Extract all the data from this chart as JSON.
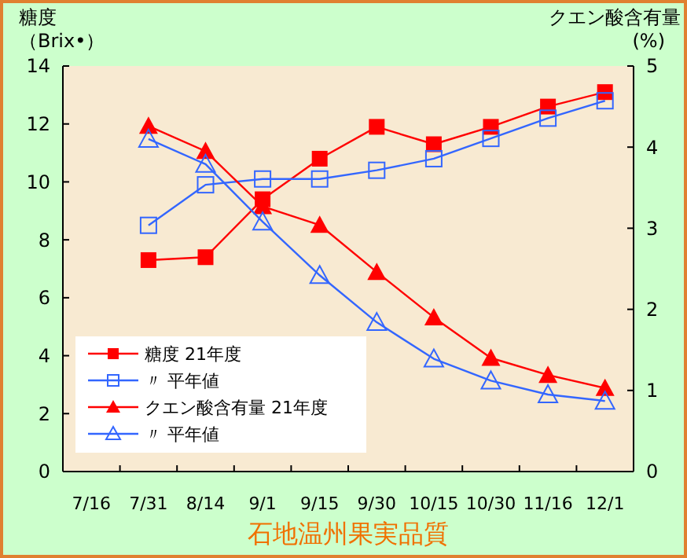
{
  "chart_data": {
    "type": "line",
    "title": "石地温州果実品質",
    "ylabel": "糖度（Brix•）",
    "y2label": "クエン酸含有量(%)",
    "categories": [
      "7/16",
      "7/31",
      "8/14",
      "9/1",
      "9/15",
      "9/30",
      "10/15",
      "10/30",
      "11/16",
      "12/1"
    ],
    "ylim": [
      0,
      14
    ],
    "yticks": [
      0,
      2,
      4,
      6,
      8,
      10,
      12,
      14
    ],
    "y2lim": [
      0,
      5
    ],
    "y2ticks": [
      0,
      1,
      2,
      3,
      4,
      5
    ],
    "grid": false,
    "legend": "bottom left",
    "line_style": "solid",
    "series": [
      {
        "name": "糖度 21年度",
        "color": "#ff0000",
        "marker": "square",
        "values": [
          null,
          7.3,
          7.4,
          9.4,
          10.8,
          11.9,
          11.3,
          11.9,
          12.6,
          13.1
        ]
      },
      {
        "name": "〃 平年値",
        "color": "#3366ff",
        "marker": "square",
        "values": [
          null,
          8.5,
          9.9,
          10.1,
          10.1,
          10.4,
          10.8,
          11.5,
          12.2,
          12.8
        ]
      },
      {
        "name": "クエン酸含有量 21年度",
        "color": "#ff0000",
        "marker": "triangle",
        "axis": "y2",
        "values": [
          null,
          4.26,
          3.95,
          3.27,
          3.04,
          2.46,
          1.9,
          1.4,
          1.19,
          1.03
        ]
      },
      {
        "name": "〃 平年値",
        "color": "#3366ff",
        "marker": "triangle",
        "axis": "y2",
        "values": [
          null,
          4.1,
          3.79,
          3.08,
          2.42,
          1.84,
          1.39,
          1.12,
          0.95,
          0.87
        ]
      }
    ]
  }
}
